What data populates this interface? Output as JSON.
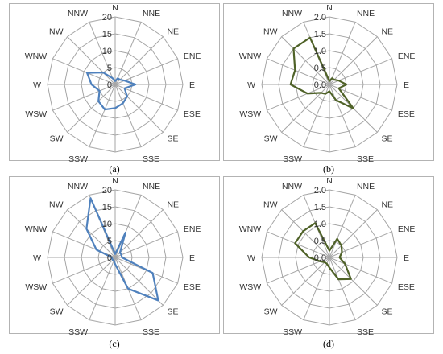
{
  "chart_data": [
    {
      "type": "radar",
      "panel": "a",
      "caption": "(a)",
      "directions": [
        "N",
        "NNE",
        "NE",
        "ENE",
        "E",
        "ESE",
        "SE",
        "SSE",
        "S",
        "SSW",
        "SW",
        "WSW",
        "W",
        "WNW",
        "NW",
        "NNW"
      ],
      "ticks": [
        "0",
        "5",
        "10",
        "15",
        "20"
      ],
      "rmax": 20,
      "series_color": "#4f81bd",
      "values": [
        1,
        2,
        2,
        3,
        6,
        3,
        5,
        6,
        7,
        8,
        7,
        5,
        7,
        9,
        5,
        2
      ]
    },
    {
      "type": "radar",
      "panel": "b",
      "caption": "(b)",
      "directions": [
        "N",
        "NNE",
        "NE",
        "ENE",
        "E",
        "ESE",
        "SE",
        "SSE",
        "S",
        "SSW",
        "SW",
        "WSW",
        "W",
        "WNW",
        "NW",
        "NNW"
      ],
      "ticks": [
        "0.0",
        "0.5",
        "1.0",
        "1.5",
        "2.0"
      ],
      "rmax": 2.0,
      "series_color": "#4f6228",
      "values": [
        0.1,
        0.2,
        0.2,
        0.3,
        0.5,
        0.3,
        1.0,
        0.5,
        0.2,
        0.3,
        0.35,
        0.7,
        1.15,
        1.1,
        1.5,
        1.5
      ]
    },
    {
      "type": "radar",
      "panel": "c",
      "caption": "(c)",
      "directions": [
        "N",
        "NNE",
        "NE",
        "ENE",
        "E",
        "ESE",
        "SE",
        "SSE",
        "S",
        "SSW",
        "SW",
        "WSW",
        "W",
        "WNW",
        "NW",
        "NNW"
      ],
      "ticks": [
        "0",
        "5",
        "10",
        "15",
        "20"
      ],
      "rmax": 20,
      "series_color": "#4f81bd",
      "values": [
        1,
        8,
        2,
        2,
        2,
        12,
        18,
        10,
        2,
        1,
        1,
        1,
        1,
        6,
        12,
        19
      ]
    },
    {
      "type": "radar",
      "panel": "d",
      "caption": "(d)",
      "directions": [
        "N",
        "NNE",
        "NE",
        "ENE",
        "E",
        "ESE",
        "SE",
        "SSE",
        "S",
        "SSW",
        "SW",
        "WSW",
        "W",
        "WNW",
        "NW",
        "NNW"
      ],
      "ticks": [
        "0.0",
        "0.5",
        "1.0",
        "1.5",
        "2.0"
      ],
      "rmax": 2.0,
      "series_color": "#4f6228",
      "values": [
        0.2,
        0.6,
        0.5,
        0.4,
        0.3,
        0.5,
        0.9,
        0.7,
        0.3,
        0.2,
        0.2,
        0.3,
        0.6,
        1.1,
        1.1,
        1.1
      ]
    }
  ]
}
